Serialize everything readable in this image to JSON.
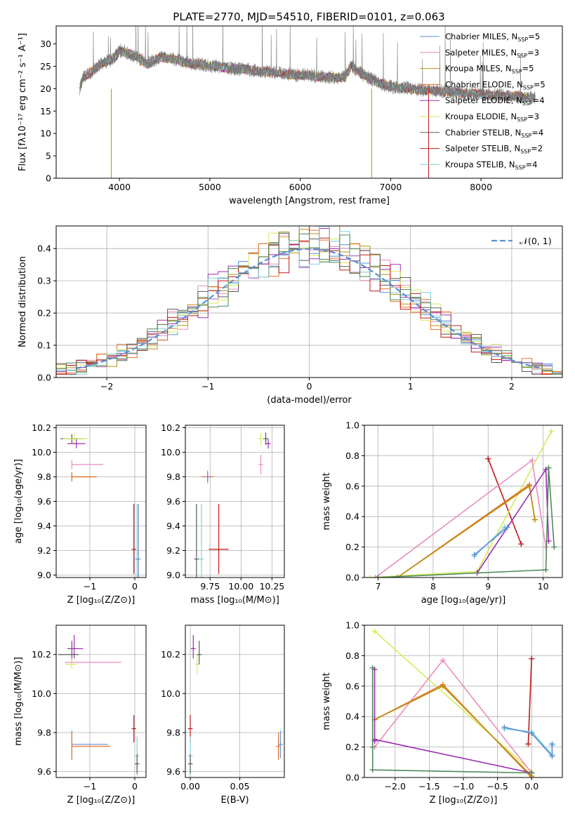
{
  "title": "PLATE=2770, MJD=54510, FIBERID=0101, z=0.063",
  "colors": {
    "chabrier_miles": "#5b8fd6",
    "salpeter_miles": "#e88cc0",
    "kroupa_miles": "#b8900f",
    "chabrier_elodie": "#e8702a",
    "salpeter_elodie": "#9b2db0",
    "kroupa_elodie": "#d6ea5c",
    "chabrier_stelib": "#5a5a5a",
    "salpeter_stelib": "#c01818",
    "kroupa_stelib": "#80d0d8",
    "grid": "#b0b0b0",
    "normal_curve": "#5b8fd6",
    "trace_green": "#4f8a5a"
  },
  "legend": [
    {
      "key": "chabrier_miles",
      "label": "Chabrier MILES, N",
      "n": "5"
    },
    {
      "key": "salpeter_miles",
      "label": "Salpeter MILES, N",
      "n": "3"
    },
    {
      "key": "kroupa_miles",
      "label": "Kroupa MILES, N",
      "n": "5"
    },
    {
      "key": "chabrier_elodie",
      "label": "Chabrier ELODIE, N",
      "n": "5"
    },
    {
      "key": "salpeter_elodie",
      "label": "Salpeter ELODIE, N",
      "n": "4"
    },
    {
      "key": "kroupa_elodie",
      "label": "Kroupa ELODIE, N",
      "n": "3"
    },
    {
      "key": "chabrier_stelib",
      "label": "Chabrier STELIB, N",
      "n": "4"
    },
    {
      "key": "salpeter_stelib",
      "label": "Salpeter STELIB, N",
      "n": "2"
    },
    {
      "key": "kroupa_stelib",
      "label": "Kroupa STELIB, N",
      "n": "4"
    }
  ],
  "legend_sub": "SSP",
  "chart_data": [
    {
      "id": "spectrum",
      "type": "line",
      "xlabel": "wavelength [Angstrom, rest frame]",
      "ylabel": "Flux [fλ10⁻¹⁷ erg cm⁻² s⁻¹ A⁻¹]",
      "xlim": [
        3300,
        8900
      ],
      "ylim": [
        0,
        34
      ],
      "xticks": [
        4000,
        5000,
        6000,
        7000,
        8000
      ],
      "yticks": [
        0,
        5,
        10,
        15,
        20,
        25,
        30
      ],
      "grid": false,
      "legend_position": "right",
      "x": [
        3560,
        3600,
        3700,
        3800,
        3900,
        3950,
        4000,
        4100,
        4200,
        4300,
        4400,
        4500,
        4600,
        4700,
        4800,
        4900,
        5000,
        5100,
        5200,
        5300,
        5400,
        5500,
        5600,
        5700,
        5800,
        5900,
        6000,
        6100,
        6200,
        6300,
        6400,
        6500,
        6560,
        6600,
        6700,
        6800,
        6900,
        7000,
        7100,
        7200,
        7300,
        7400,
        7500,
        7600,
        7700,
        7800,
        7900,
        8000,
        8100,
        8200,
        8300,
        8400,
        8500,
        8600
      ],
      "y": [
        20,
        22.5,
        24,
        25.5,
        26.5,
        27,
        28.5,
        28,
        27,
        25.5,
        26.5,
        27,
        26.5,
        26,
        25.5,
        25.5,
        25,
        25,
        24.5,
        24.5,
        24.3,
        24,
        23.8,
        23.6,
        23.4,
        23.2,
        23,
        23,
        22.7,
        22.6,
        22.5,
        22.5,
        25,
        24.5,
        23,
        22,
        21,
        20.5,
        20.2,
        20,
        19.8,
        19.7,
        19.5,
        19.3,
        19.2,
        19,
        18.9,
        18.8,
        18.6,
        18.5,
        18.4,
        18.2,
        18.1,
        18
      ]
    },
    {
      "id": "residuals",
      "type": "line",
      "xlabel": "(data-model)/error",
      "ylabel": "Normed distribution",
      "xlim": [
        -2.5,
        2.5
      ],
      "ylim": [
        0,
        0.47
      ],
      "xticks": [
        -2,
        -1,
        0,
        1,
        2
      ],
      "yticks": [
        0,
        0.1,
        0.2,
        0.3,
        0.4
      ],
      "grid": true,
      "legend_position": "top-right",
      "series": [
        {
          "name": "𝒩(0, 1)",
          "type": "normal",
          "mean": 0,
          "sigma": 1
        }
      ]
    },
    {
      "id": "age_vs_Z",
      "type": "scatter",
      "xlabel": "Z [log₁₀(Z/Z⊙)]",
      "ylabel": "age  [log₁₀(age/yr)]",
      "xlim": [
        -1.75,
        0.25
      ],
      "ylim": [
        8.98,
        10.22
      ],
      "xticks": [
        -1,
        0
      ],
      "yticks": [
        9.0,
        9.2,
        9.4,
        9.6,
        9.8,
        10.0,
        10.2
      ],
      "grid": true,
      "points": [
        {
          "key": "kroupa_miles",
          "x": -1.4,
          "y": 9.8,
          "xerr": [
            0.0,
            0.55
          ]
        },
        {
          "key": "chabrier_elodie",
          "x": -1.4,
          "y": 9.8,
          "xerr": [
            0.0,
            0.55
          ]
        },
        {
          "key": "salpeter_miles",
          "x": -1.4,
          "y": 9.9,
          "xerr": [
            0.0,
            0.7
          ]
        },
        {
          "key": "chabrier_stelib",
          "x": -1.4,
          "y": 10.11,
          "xerr": [
            0.25,
            0.25
          ]
        },
        {
          "key": "kroupa_elodie",
          "x": -1.35,
          "y": 10.11,
          "xerr": [
            0.25,
            0.3
          ]
        },
        {
          "key": "salpeter_elodie",
          "x": -1.3,
          "y": 10.07,
          "xerr": [
            0.2,
            0.2
          ]
        },
        {
          "key": "salpeter_stelib",
          "x": -0.02,
          "y": 9.21,
          "yerr": [
            0.2,
            0.37
          ]
        },
        {
          "key": "kroupa_stelib",
          "x": 0.05,
          "y": 9.13,
          "yerr": [
            0.15,
            0.45
          ]
        },
        {
          "key": "chabrier_miles",
          "x": 0.08,
          "y": 9.13,
          "yerr": [
            0.15,
            0.45
          ]
        }
      ]
    },
    {
      "id": "age_vs_mass",
      "type": "scatter",
      "xlabel": "mass [log₁₀(M/M⊙)]",
      "ylabel": "",
      "xlim": [
        9.55,
        10.35
      ],
      "ylim": [
        8.98,
        10.22
      ],
      "xticks": [
        9.75,
        10.0,
        10.25
      ],
      "yticks": [
        9.0,
        9.2,
        9.4,
        9.6,
        9.8,
        10.0,
        10.2
      ],
      "grid": true,
      "points": [
        {
          "key": "chabrier_elodie",
          "x": 9.73,
          "y": 9.8,
          "xerr": [
            0.05,
            0.05
          ]
        },
        {
          "key": "chabrier_miles",
          "x": 9.73,
          "y": 9.8,
          "yerr": [
            0.05,
            0.05
          ]
        },
        {
          "key": "salpeter_miles",
          "x": 10.16,
          "y": 9.9,
          "yerr": [
            0.08,
            0.08
          ]
        },
        {
          "key": "kroupa_elodie",
          "x": 10.16,
          "y": 10.11,
          "yerr": [
            0.05,
            0.05
          ]
        },
        {
          "key": "chabrier_stelib",
          "x": 10.2,
          "y": 10.11,
          "yerr": [
            0.05,
            0.05
          ]
        },
        {
          "key": "salpeter_elodie",
          "x": 10.22,
          "y": 10.07,
          "yerr": [
            0.04,
            0.04
          ]
        },
        {
          "key": "chabrier_stelib",
          "x": 9.64,
          "y": 9.13,
          "yerr": [
            0.18,
            0.45
          ]
        },
        {
          "key": "kroupa_stelib",
          "x": 9.68,
          "y": 9.13,
          "yerr": [
            0.18,
            0.45
          ]
        },
        {
          "key": "salpeter_stelib",
          "x": 9.82,
          "y": 9.21,
          "xerr": [
            0.08,
            0.08
          ],
          "yerr": [
            0.2,
            0.37
          ]
        }
      ]
    },
    {
      "id": "weight_vs_age",
      "type": "line",
      "xlabel": "age  [log₁₀(age/yr)]",
      "ylabel": "mass weight",
      "xlim": [
        6.75,
        10.35
      ],
      "ylim": [
        0,
        1.0
      ],
      "xticks": [
        7,
        8,
        9,
        10
      ],
      "yticks": [
        0.0,
        0.2,
        0.4,
        0.6,
        0.8,
        1.0
      ],
      "grid": true,
      "series": [
        {
          "key": "salpeter_stelib",
          "x": [
            9.0,
            9.6
          ],
          "y": [
            0.78,
            0.22
          ]
        },
        {
          "key": "kroupa_elodie",
          "x": [
            6.85,
            8.8,
            10.15
          ],
          "y": [
            0.0,
            0.04,
            0.96
          ]
        },
        {
          "key": "salpeter_miles",
          "x": [
            6.95,
            9.8,
            10.05
          ],
          "y": [
            0.0,
            0.77,
            0.2
          ]
        },
        {
          "key": "chabrier_elodie",
          "x": [
            7.35,
            9.75,
            9.85
          ],
          "y": [
            0.0,
            0.61,
            0.38
          ]
        },
        {
          "key": "kroupa_miles",
          "x": [
            7.35,
            9.75,
            9.85
          ],
          "y": [
            0.0,
            0.6,
            0.38
          ]
        },
        {
          "key": "salpeter_elodie",
          "x": [
            8.8,
            10.05,
            10.1
          ],
          "y": [
            0.03,
            0.71,
            0.24
          ]
        },
        {
          "key": "trace_green",
          "x": [
            7.0,
            10.05,
            10.1,
            10.2
          ],
          "y": [
            0.0,
            0.05,
            0.72,
            0.2
          ]
        },
        {
          "key": "kroupa_stelib",
          "x": [
            8.75,
            9.3
          ],
          "y": [
            0.14,
            0.33
          ]
        },
        {
          "key": "chabrier_miles",
          "x": [
            8.75,
            9.35
          ],
          "y": [
            0.15,
            0.33
          ]
        }
      ]
    },
    {
      "id": "mass_vs_Z",
      "type": "scatter",
      "xlabel": "Z [log₁₀(Z/Z⊙)]",
      "ylabel": "mass [log₁₀(M/M⊙)]",
      "xlim": [
        -1.75,
        0.25
      ],
      "ylim": [
        9.57,
        10.35
      ],
      "xticks": [
        -1,
        0
      ],
      "yticks": [
        9.6,
        9.8,
        10.0,
        10.2
      ],
      "grid": true,
      "points": [
        {
          "key": "salpeter_elodie",
          "x": -1.35,
          "y": 10.23,
          "xerr": [
            0.15,
            0.2
          ],
          "yerr": [
            0.05,
            0.07
          ]
        },
        {
          "key": "chabrier_stelib",
          "x": -1.4,
          "y": 10.2,
          "xerr": [
            0.3,
            0.15
          ],
          "yerr": [
            0.05,
            0.07
          ]
        },
        {
          "key": "salpeter_miles",
          "x": -1.4,
          "y": 10.16,
          "xerr": [
            0.15,
            1.1
          ]
        },
        {
          "key": "kroupa_elodie",
          "x": -1.4,
          "y": 10.15,
          "xerr": [
            0.15,
            0.1
          ]
        },
        {
          "key": "chabrier_miles",
          "x": -1.4,
          "y": 9.74,
          "xerr": [
            0.0,
            0.8
          ],
          "yerr": [
            0.07,
            0.07
          ]
        },
        {
          "key": "chabrier_elodie",
          "x": -1.4,
          "y": 9.73,
          "xerr": [
            0.0,
            0.85
          ],
          "yerr": [
            0.07,
            0.07
          ]
        },
        {
          "key": "salpeter_stelib",
          "x": -0.02,
          "y": 9.82,
          "yerr": [
            0.07,
            0.07
          ]
        },
        {
          "key": "kroupa_stelib",
          "x": 0.05,
          "y": 9.68,
          "xerr": [
            0.05,
            0.05
          ],
          "yerr": [
            0.1,
            0.1
          ]
        },
        {
          "key": "chabrier_stelib",
          "x": 0.05,
          "y": 9.64,
          "xerr": [
            0.05,
            0.05
          ],
          "yerr": [
            0.05,
            0.05
          ]
        }
      ]
    },
    {
      "id": "mass_vs_EBV",
      "type": "scatter",
      "xlabel": "E(B-V)",
      "ylabel": "",
      "xlim": [
        -0.005,
        0.095
      ],
      "ylim": [
        9.57,
        10.35
      ],
      "xticks": [
        0.0,
        0.05
      ],
      "yticks": [
        9.6,
        9.8,
        10.0,
        10.2
      ],
      "grid": true,
      "points": [
        {
          "key": "salpeter_elodie",
          "x": 0.003,
          "y": 10.23,
          "yerr": [
            0.05,
            0.07
          ]
        },
        {
          "key": "kroupa_elodie",
          "x": 0.007,
          "y": 10.15,
          "yerr": [
            0.05,
            0.05
          ]
        },
        {
          "key": "chabrier_stelib",
          "x": 0.009,
          "y": 10.2,
          "yerr": [
            0.05,
            0.07
          ]
        },
        {
          "key": "salpeter_stelib",
          "x": 0.0,
          "y": 9.82,
          "yerr": [
            0.07,
            0.07
          ]
        },
        {
          "key": "kroupa_stelib",
          "x": 0.0,
          "y": 9.68,
          "yerr": [
            0.1,
            0.1
          ]
        },
        {
          "key": "chabrier_stelib",
          "x": 0.0,
          "y": 9.64,
          "yerr": [
            0.05,
            0.05
          ]
        },
        {
          "key": "chabrier_elodie",
          "x": 0.089,
          "y": 9.73,
          "yerr": [
            0.07,
            0.07
          ]
        },
        {
          "key": "chabrier_miles",
          "x": 0.091,
          "y": 9.74,
          "yerr": [
            0.07,
            0.07
          ]
        }
      ]
    },
    {
      "id": "weight_vs_Z",
      "type": "line",
      "xlabel": "Z [log₁₀(Z/Z⊙)]",
      "ylabel": "mass weight",
      "xlim": [
        -2.45,
        0.45
      ],
      "ylim": [
        0,
        1.0
      ],
      "xticks": [
        -2.0,
        -1.5,
        -1.0,
        -0.5,
        0.0
      ],
      "yticks": [
        0.0,
        0.2,
        0.4,
        0.6,
        0.8,
        1.0
      ],
      "grid": true,
      "series": [
        {
          "key": "kroupa_elodie",
          "x": [
            -2.3,
            0.0,
            0.0
          ],
          "y": [
            0.96,
            0.04,
            0.0
          ]
        },
        {
          "key": "salpeter_miles",
          "x": [
            -2.3,
            -1.3,
            0.0,
            0.0
          ],
          "y": [
            0.2,
            0.77,
            0.03,
            0.0
          ]
        },
        {
          "key": "chabrier_elodie",
          "x": [
            -2.3,
            -1.3,
            0.0
          ],
          "y": [
            0.38,
            0.61,
            0.0
          ]
        },
        {
          "key": "kroupa_miles",
          "x": [
            -2.3,
            -1.3,
            0.0
          ],
          "y": [
            0.38,
            0.6,
            0.01
          ]
        },
        {
          "key": "salpeter_elodie",
          "x": [
            -2.3,
            -2.3,
            -2.3,
            0.0
          ],
          "y": [
            0.71,
            0.24,
            0.25,
            0.03
          ]
        },
        {
          "key": "trace_green",
          "x": [
            -2.33,
            -2.33,
            -2.33,
            0.0
          ],
          "y": [
            0.72,
            0.2,
            0.05,
            0.03
          ]
        },
        {
          "key": "salpeter_stelib",
          "x": [
            -0.05,
            0.0
          ],
          "y": [
            0.22,
            0.78
          ]
        },
        {
          "key": "kroupa_stelib",
          "x": [
            -0.4,
            0.0,
            0.3,
            0.3,
            0.3
          ],
          "y": [
            0.32,
            0.3,
            0.15,
            0.21,
            0.22
          ]
        },
        {
          "key": "chabrier_miles",
          "x": [
            -0.4,
            0.0,
            0.3,
            0.3
          ],
          "y": [
            0.33,
            0.29,
            0.14,
            0.22
          ]
        }
      ]
    }
  ]
}
